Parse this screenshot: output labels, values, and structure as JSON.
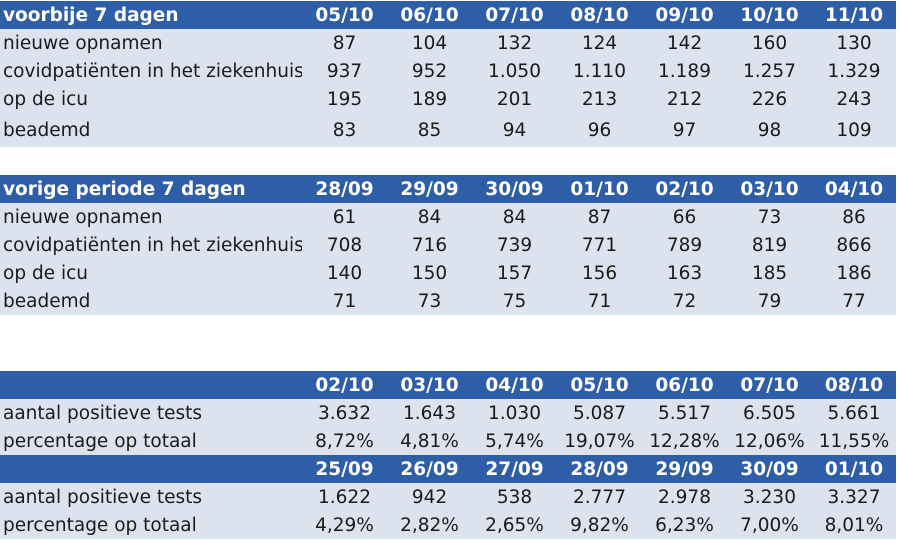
{
  "chart_data": [
    {
      "type": "table",
      "title": "voorbije 7 dagen",
      "columns": [
        "05/10",
        "06/10",
        "07/10",
        "08/10",
        "09/10",
        "10/10",
        "11/10"
      ],
      "rows": [
        {
          "label": "nieuwe opnamen",
          "values": [
            "87",
            "104",
            "132",
            "124",
            "142",
            "160",
            "130"
          ]
        },
        {
          "label": "covidpatiënten in het ziekenhuis",
          "values": [
            "937",
            "952",
            "1.050",
            "1.110",
            "1.189",
            "1.257",
            "1.329"
          ]
        },
        {
          "label": "op de icu",
          "values": [
            "195",
            "189",
            "201",
            "213",
            "212",
            "226",
            "243"
          ]
        },
        {
          "label": "beademd",
          "values": [
            "83",
            "85",
            "94",
            "96",
            "97",
            "98",
            "109"
          ]
        }
      ]
    },
    {
      "type": "table",
      "title": "vorige periode 7 dagen",
      "columns": [
        "28/09",
        "29/09",
        "30/09",
        "01/10",
        "02/10",
        "03/10",
        "04/10"
      ],
      "rows": [
        {
          "label": "nieuwe opnamen",
          "values": [
            "61",
            "84",
            "84",
            "87",
            "66",
            "73",
            "86"
          ]
        },
        {
          "label": "covidpatiënten in het ziekenhuis",
          "values": [
            "708",
            "716",
            "739",
            "771",
            "789",
            "819",
            "866"
          ]
        },
        {
          "label": "op de icu",
          "values": [
            "140",
            "150",
            "157",
            "156",
            "163",
            "185",
            "186"
          ]
        },
        {
          "label": "beademd",
          "values": [
            "71",
            "73",
            "75",
            "71",
            "72",
            "79",
            "77"
          ]
        }
      ]
    },
    {
      "type": "table",
      "title": "",
      "columns": [
        "02/10",
        "03/10",
        "04/10",
        "05/10",
        "06/10",
        "07/10",
        "08/10"
      ],
      "rows": [
        {
          "label": "aantal positieve tests",
          "values": [
            "3.632",
            "1.643",
            "1.030",
            "5.087",
            "5.517",
            "6.505",
            "5.661"
          ]
        },
        {
          "label": "percentage op totaal",
          "values": [
            "8,72%",
            "4,81%",
            "5,74%",
            "19,07%",
            "12,28%",
            "12,06%",
            "11,55%"
          ]
        }
      ]
    },
    {
      "type": "table",
      "title": "",
      "columns": [
        "25/09",
        "26/09",
        "27/09",
        "28/09",
        "29/09",
        "30/09",
        "01/10"
      ],
      "rows": [
        {
          "label": "aantal positieve tests",
          "values": [
            "1.622",
            "942",
            "538",
            "2.777",
            "2.978",
            "3.230",
            "3.327"
          ]
        },
        {
          "label": "percentage op totaal",
          "values": [
            "4,29%",
            "2,82%",
            "2,65%",
            "9,82%",
            "6,23%",
            "7,00%",
            "8,01%"
          ]
        }
      ]
    }
  ]
}
